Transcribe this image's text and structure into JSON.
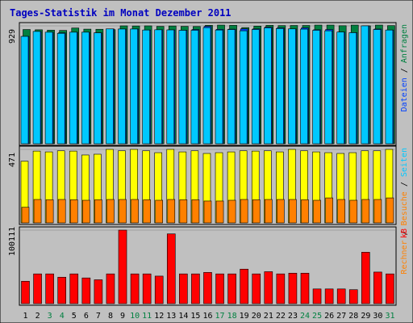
{
  "chart_data": {
    "type": "bar",
    "title": "Tages-Statistik im Monat Dezember 2011",
    "categories": [
      "1",
      "2",
      "3",
      "4",
      "5",
      "6",
      "7",
      "8",
      "9",
      "10",
      "11",
      "12",
      "13",
      "14",
      "15",
      "16",
      "17",
      "18",
      "19",
      "20",
      "21",
      "22",
      "23",
      "24",
      "25",
      "26",
      "27",
      "28",
      "29",
      "30",
      "31"
    ],
    "weekend_days": [
      "3",
      "4",
      "10",
      "11",
      "17",
      "18",
      "24",
      "25",
      "31"
    ],
    "panels": [
      {
        "id": "top",
        "ymax": 929,
        "ylabel_parts": [
          "Dateien",
          "Anfragen"
        ],
        "series": [
          {
            "name": "Anfragen",
            "color": "#008040",
            "values": [
              900,
              898,
              895,
              893,
              912,
              903,
              902,
              899,
              929,
              928,
              929,
              925,
              928,
              925,
              924,
              933,
              935,
              933,
              915,
              927,
              933,
              931,
              932,
              932,
              935,
              935,
              930,
              935,
              929,
              935,
              931
            ]
          },
          {
            "name": "Dateien",
            "color": "#0040ff",
            "values": [
              846,
              885,
              879,
              874,
              879,
              879,
              874,
              905,
              904,
              904,
              896,
              898,
              897,
              894,
              900,
              925,
              901,
              903,
              905,
              905,
              919,
              913,
              905,
              913,
              898,
              900,
              880,
              875,
              929,
              904,
              896
            ]
          },
          {
            "name": "Dateien",
            "color": "#00c8ff",
            "values": [
              846,
              885,
              879,
              870,
              879,
              879,
              874,
              905,
              904,
              904,
              896,
              898,
              897,
              894,
              894,
              915,
              896,
              900,
              890,
              900,
              913,
              908,
              905,
              903,
              894,
              890,
              880,
              875,
              929,
              900,
              896
            ]
          }
        ]
      },
      {
        "id": "mid",
        "ymax": 471,
        "ylabel_parts": [
          "Rechner",
          "Besuche",
          "Seiten"
        ],
        "series": [
          {
            "name": "Seiten",
            "color": "#ffff00",
            "values": [
              395,
              460,
              455,
              462,
              460,
              435,
              440,
              471,
              462,
              471,
              462,
              450,
              471,
              455,
              462,
              445,
              450,
              455,
              462,
              460,
              462,
              455,
              471,
              462,
              455,
              450,
              445,
              450,
              462,
              462,
              471
            ]
          },
          {
            "name": "Besuche",
            "color": "#ff8000",
            "values": [
              100,
              150,
              148,
              150,
              148,
              145,
              148,
              150,
              150,
              150,
              148,
              145,
              150,
              148,
              148,
              140,
              140,
              145,
              150,
              148,
              150,
              150,
              150,
              148,
              145,
              160,
              150,
              145,
              150,
              150,
              160
            ]
          },
          {
            "name": "Rechner",
            "color": "#ff8000",
            "values": [
              100,
              150,
              148,
              150,
              148,
              145,
              148,
              150,
              150,
              150,
              148,
              145,
              150,
              148,
              148,
              140,
              140,
              145,
              150,
              148,
              150,
              150,
              150,
              148,
              145,
              160,
              150,
              145,
              150,
              150,
              160
            ]
          }
        ]
      },
      {
        "id": "bottom",
        "ymax": 100111,
        "ylabel_parts": [
          "kB"
        ],
        "series": [
          {
            "name": "kB",
            "color": "#ff0000",
            "values": [
              30500,
              40500,
              40500,
              36000,
              40500,
              35000,
              32500,
              40500,
              100111,
              40500,
              40500,
              37500,
              95000,
              40500,
              40500,
              42500,
              40500,
              40500,
              47000,
              40500,
              43500,
              40500,
              41500,
              41500,
              20000,
              20000,
              20000,
              19000,
              70000,
              43000,
              40500
            ]
          }
        ]
      }
    ],
    "colors": {
      "background": "#c0c0c0",
      "panel_border": "#000000",
      "title": "#0000c0",
      "weekday_label": "#000000",
      "weekend_label": "#008040",
      "label_anfragen": "#008040",
      "label_dateien": "#0040ff",
      "label_seiten": "#00c8ff",
      "label_besuche": "#ff8000",
      "label_rechner": "#ff8000",
      "label_kb": "#ff0000"
    }
  }
}
